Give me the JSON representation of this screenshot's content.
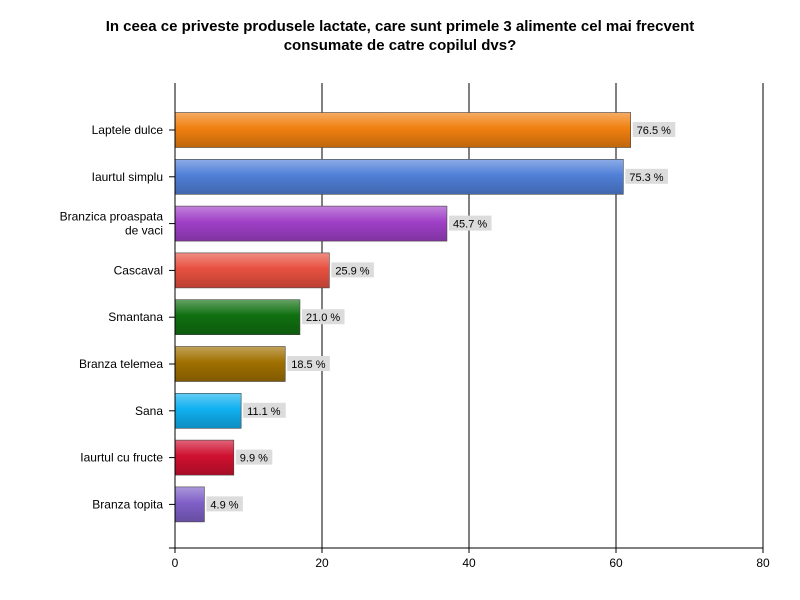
{
  "chart_data": {
    "type": "bar",
    "orientation": "horizontal",
    "title": "In ceea ce priveste produsele lactate, care sunt primele 3 alimente cel mai frecvent\nconsumate de catre copilul dvs?",
    "categories": [
      "Laptele dulce",
      "Iaurtul simplu",
      "Branzica proaspata\nde vaci",
      "Cascaval",
      "Smantana",
      "Branza telemea",
      "Sana",
      "Iaurtul cu fructe",
      "Branza topita"
    ],
    "values": [
      62,
      61,
      37,
      21,
      17,
      15,
      9,
      8,
      4
    ],
    "data_labels": [
      "76.5 %",
      "75.3 %",
      "45.7 %",
      "25.9 %",
      "21.0 %",
      "18.5 %",
      "11.1 %",
      "9.9 %",
      "4.9 %"
    ],
    "colors": [
      "#f08010",
      "#5080d8",
      "#a040c8",
      "#e85040",
      "#107010",
      "#a07000",
      "#10b0f0",
      "#d01030",
      "#8060c8"
    ],
    "xlim": [
      0,
      80
    ],
    "xticks": [
      0,
      20,
      40,
      60,
      80
    ],
    "grid": true
  }
}
